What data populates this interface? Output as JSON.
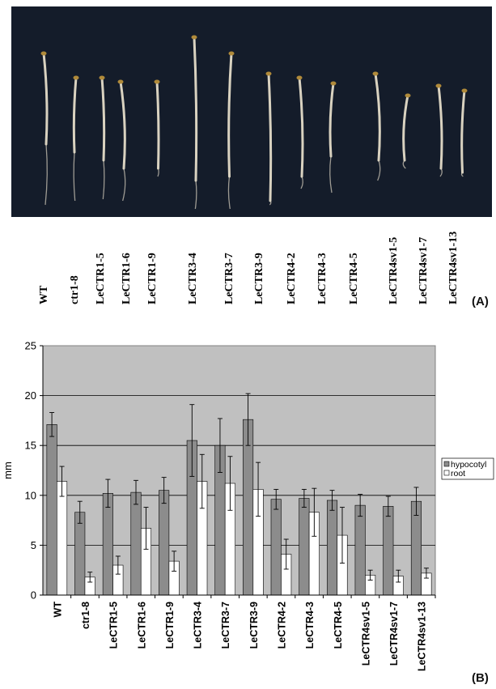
{
  "panel_labels": {
    "a": "(A)",
    "b": "(B)"
  },
  "photo": {
    "background_color": "#141c2a",
    "seedling_color": "#d9d2c0",
    "labels": [
      "WT",
      "ctr1-8",
      "LeCTR1-5",
      "LeCTR1-6",
      "LeCTR1-9",
      "LeCTR3-4",
      "LeCTR3-7",
      "LeCTR3-9",
      "LeCTR4-2",
      "LeCTR4-3",
      "LeCTR4-5",
      "LeCTR4sv1-5",
      "LeCTR4sv1-7",
      "LeCTR4sv1-13"
    ]
  },
  "chart_data": {
    "type": "bar",
    "title": "",
    "xlabel": "",
    "ylabel": "mm",
    "ylim": [
      0,
      25
    ],
    "yticks": [
      0,
      5,
      10,
      15,
      20,
      25
    ],
    "grid": true,
    "legend_position": "right",
    "plot_background": "#c0c0c0",
    "categories": [
      "WT",
      "ctr1-8",
      "LeCTR1-5",
      "LeCTR1-6",
      "LeCTR1-9",
      "LeCTR3-4",
      "LeCTR3-7",
      "LeCTR3-9",
      "LeCTR4-2",
      "LeCTR4-3",
      "LeCTR4-5",
      "LeCTR4sv1-5",
      "LeCTR4sv1-7",
      "LeCTR4sv1-13"
    ],
    "series": [
      {
        "name": "hypocotyl",
        "color": "#8c8c8c",
        "values": [
          17.1,
          8.3,
          10.2,
          10.3,
          10.5,
          15.5,
          15.0,
          17.6,
          9.6,
          9.7,
          9.5,
          9.0,
          8.9,
          9.4
        ],
        "errors": [
          1.2,
          1.1,
          1.4,
          1.2,
          1.3,
          3.6,
          2.7,
          2.6,
          1.0,
          0.9,
          1.0,
          1.1,
          1.0,
          1.4
        ]
      },
      {
        "name": "root",
        "color": "#ffffff",
        "values": [
          11.4,
          1.8,
          3.0,
          6.7,
          3.4,
          11.4,
          11.2,
          10.6,
          4.1,
          8.3,
          6.0,
          2.0,
          1.9,
          2.2
        ],
        "errors": [
          1.5,
          0.5,
          0.9,
          2.1,
          1.0,
          2.7,
          2.7,
          2.7,
          1.5,
          2.4,
          2.8,
          0.5,
          0.6,
          0.5
        ]
      }
    ]
  }
}
